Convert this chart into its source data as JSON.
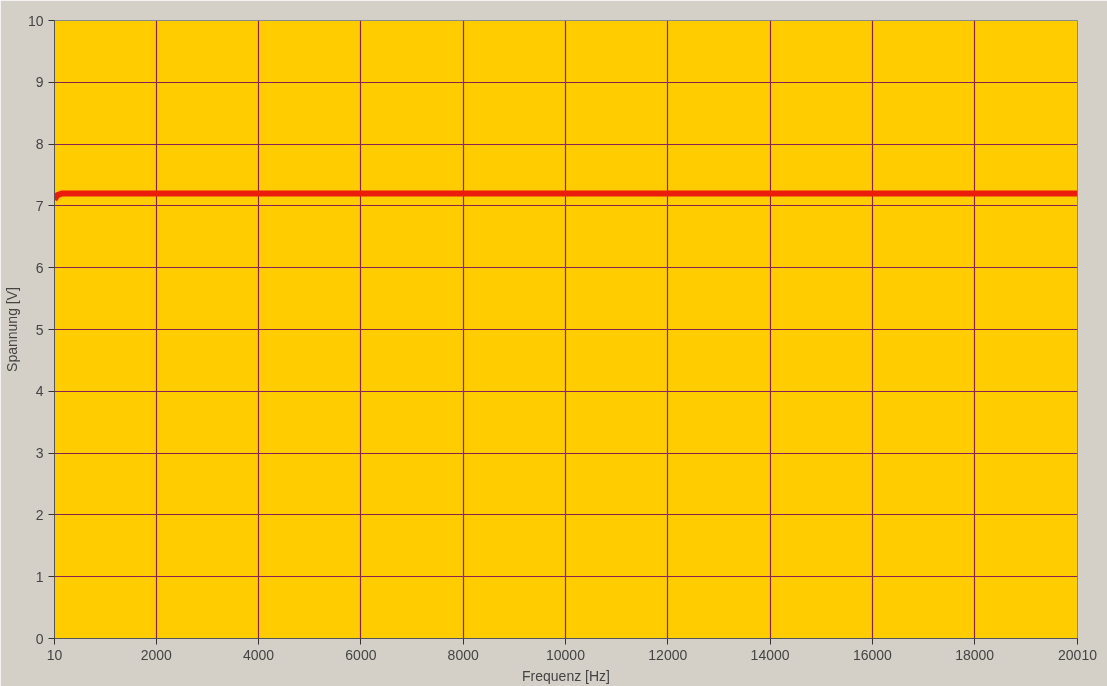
{
  "chart_data": {
    "type": "line",
    "xlabel": "Frequenz [Hz]",
    "ylabel": "Spannung [V]",
    "x": [
      10,
      60,
      150,
      2000,
      4000,
      6000,
      8000,
      10000,
      12000,
      14000,
      16000,
      18000,
      20010
    ],
    "series": [
      {
        "color": "#ec1c0c",
        "values": [
          7.1,
          7.17,
          7.2,
          7.2,
          7.2,
          7.2,
          7.2,
          7.2,
          7.2,
          7.2,
          7.2,
          7.2,
          7.2
        ]
      }
    ],
    "xlim": [
      10,
      20010
    ],
    "xticks": [
      10,
      2000,
      4000,
      6000,
      8000,
      10000,
      12000,
      14000,
      16000,
      18000,
      20010
    ],
    "ylim": [
      0,
      10
    ],
    "yticks": [
      0,
      1,
      2,
      3,
      4,
      5,
      6,
      7,
      8,
      9,
      10
    ],
    "grid": true,
    "marker": "none",
    "line_style": "solid"
  }
}
